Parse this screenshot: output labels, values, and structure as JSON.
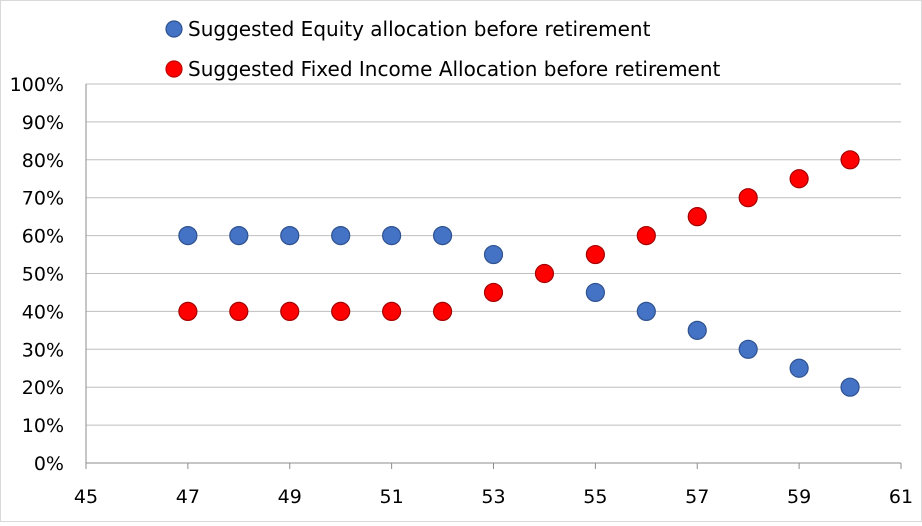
{
  "chart_data": {
    "type": "scatter",
    "title": "",
    "xlabel": "",
    "ylabel": "",
    "xlim": [
      45,
      61
    ],
    "ylim": [
      0,
      100
    ],
    "x_ticks": [
      "45",
      "47",
      "49",
      "51",
      "53",
      "55",
      "57",
      "59",
      "61"
    ],
    "y_ticks": [
      "0%",
      "10%",
      "20%",
      "30%",
      "40%",
      "50%",
      "60%",
      "70%",
      "80%",
      "90%",
      "100%"
    ],
    "grid": "horizontal",
    "legend_position": "top",
    "series": [
      {
        "name": "Suggested Equity allocation before retirement",
        "color": "#4472c4",
        "x": [
          47,
          48,
          49,
          50,
          51,
          52,
          53,
          55,
          56,
          57,
          58,
          59,
          60
        ],
        "y": [
          60,
          60,
          60,
          60,
          60,
          60,
          55,
          45,
          40,
          35,
          30,
          25,
          20
        ]
      },
      {
        "name": "Suggested Fixed Income Allocation before retirement",
        "color": "#ff0000",
        "x": [
          47,
          48,
          49,
          50,
          51,
          52,
          53,
          54,
          55,
          56,
          57,
          58,
          59,
          60
        ],
        "y": [
          40,
          40,
          40,
          40,
          40,
          40,
          45,
          50,
          55,
          60,
          65,
          70,
          75,
          80
        ]
      }
    ]
  }
}
